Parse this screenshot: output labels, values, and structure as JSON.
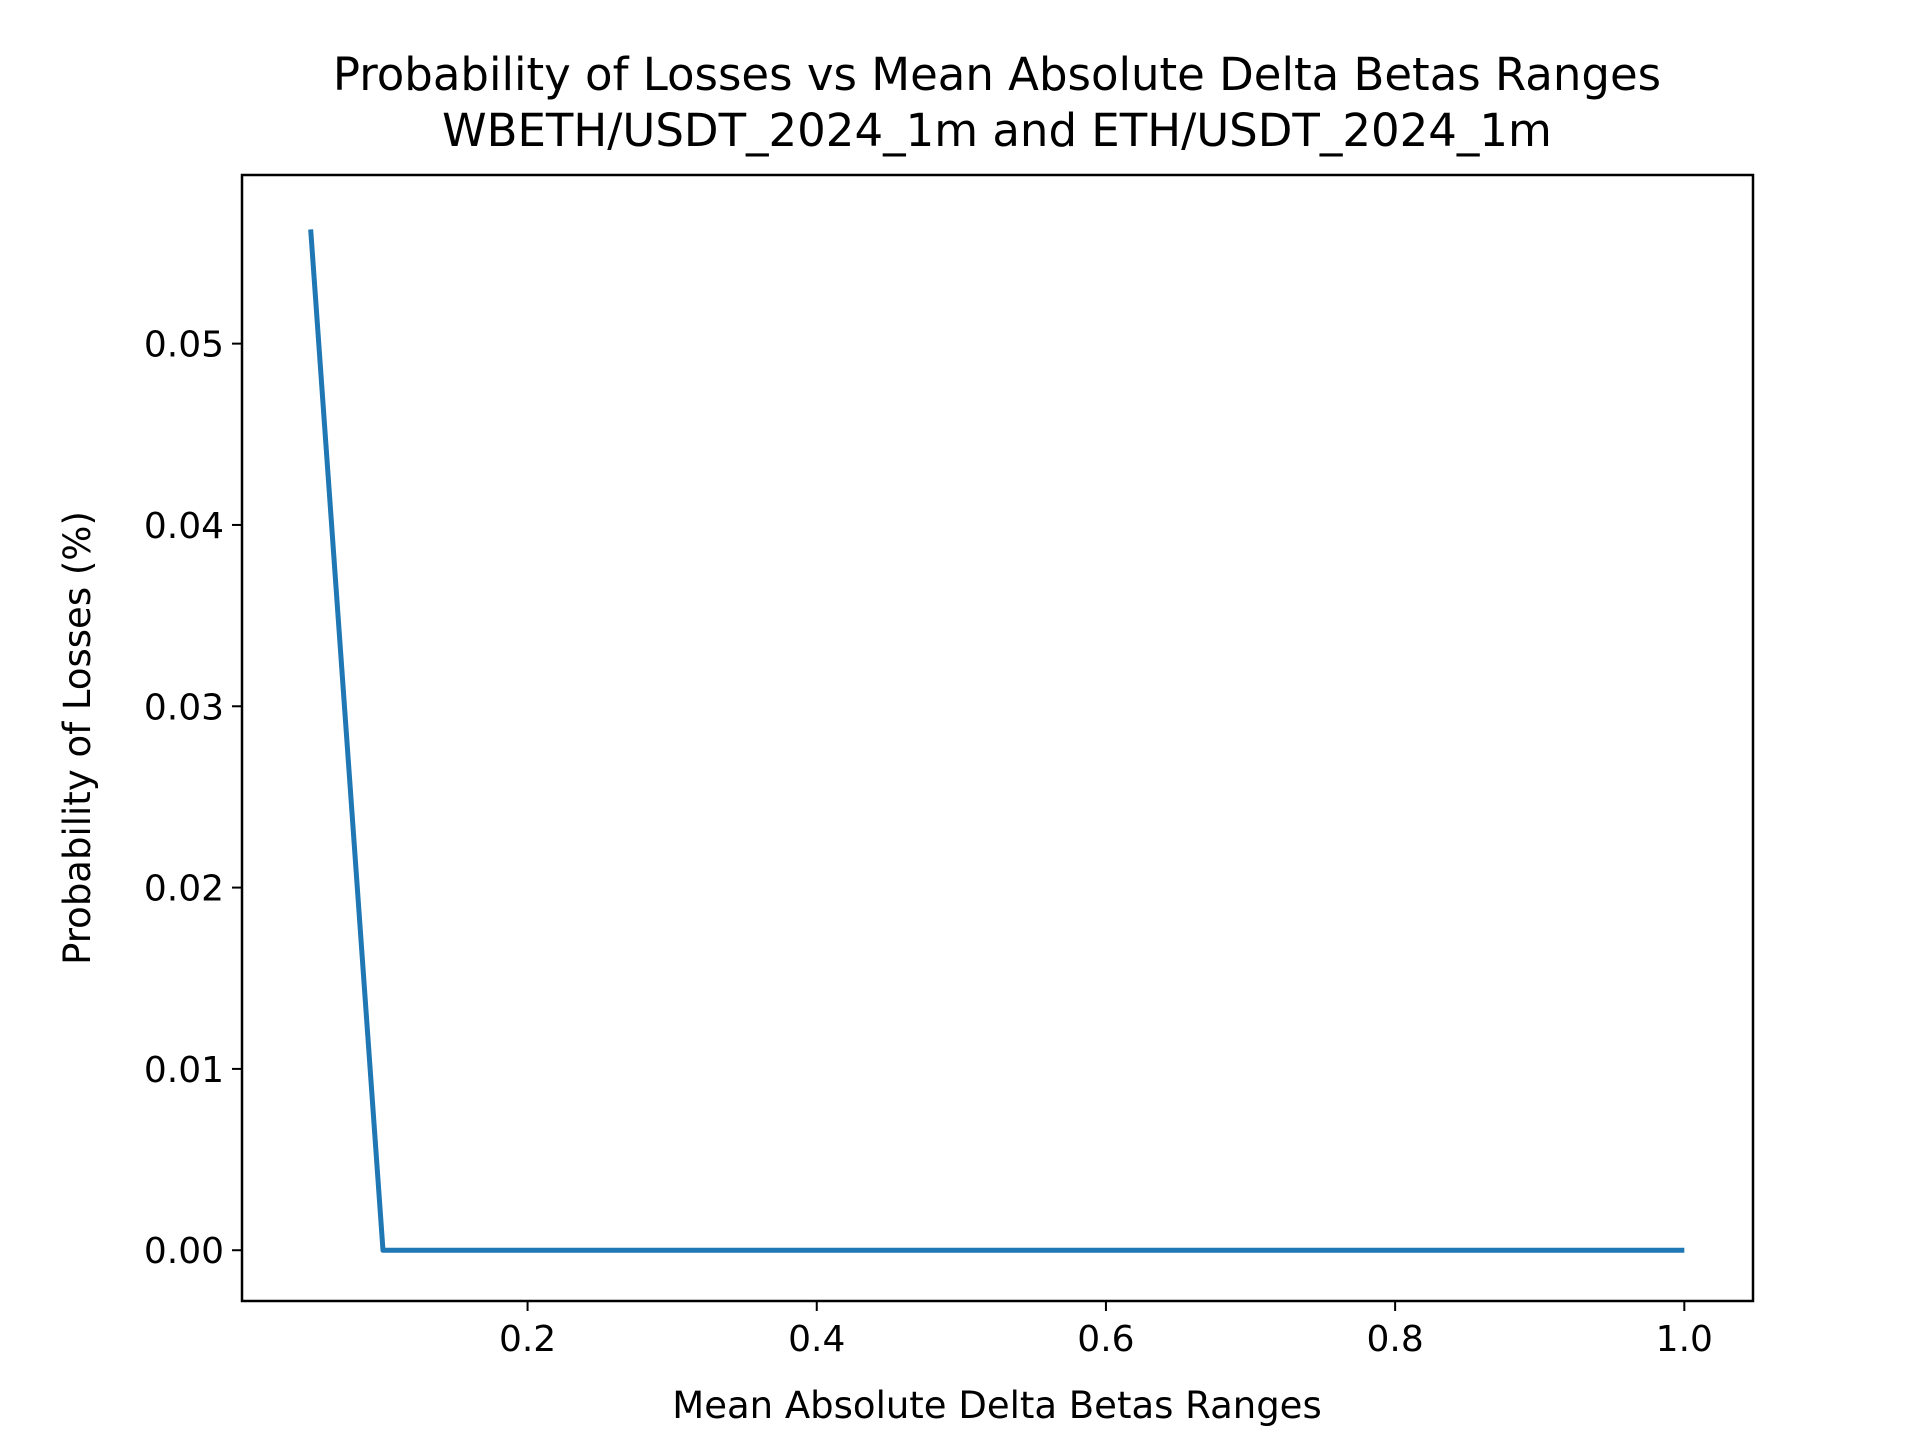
{
  "chart_data": {
    "type": "line",
    "title": "Probability of Losses vs Mean Absolute Delta Betas Ranges",
    "subtitle": "WBETH/USDT_2024_1m and ETH/USDT_2024_1m",
    "xlabel": "Mean Absolute Delta Betas Ranges",
    "ylabel": "Probability of Losses (%)",
    "xlim": [
      0.0025,
      1.0475
    ],
    "ylim": [
      -0.0028,
      0.0593
    ],
    "xticks": [
      0.2,
      0.4,
      0.6,
      0.8,
      1.0
    ],
    "xtick_labels": [
      "0.2",
      "0.4",
      "0.6",
      "0.8",
      "1.0"
    ],
    "yticks": [
      0.0,
      0.01,
      0.02,
      0.03,
      0.04,
      0.05
    ],
    "ytick_labels": [
      "0.00",
      "0.01",
      "0.02",
      "0.03",
      "0.04",
      "0.05"
    ],
    "grid": false,
    "series": [
      {
        "color": "#1f77b4",
        "x": [
          0.05,
          0.1,
          0.15,
          0.2,
          0.25,
          0.3,
          0.35,
          0.4,
          0.45,
          0.5,
          0.55,
          0.6,
          0.65,
          0.7,
          0.75,
          0.8,
          0.85,
          0.9,
          0.95,
          1.0
        ],
        "y": [
          0.0563,
          0.0,
          0.0,
          0.0,
          0.0,
          0.0,
          0.0,
          0.0,
          0.0,
          0.0,
          0.0,
          0.0,
          0.0,
          0.0,
          0.0,
          0.0,
          0.0,
          0.0,
          0.0,
          0.0
        ]
      }
    ]
  }
}
